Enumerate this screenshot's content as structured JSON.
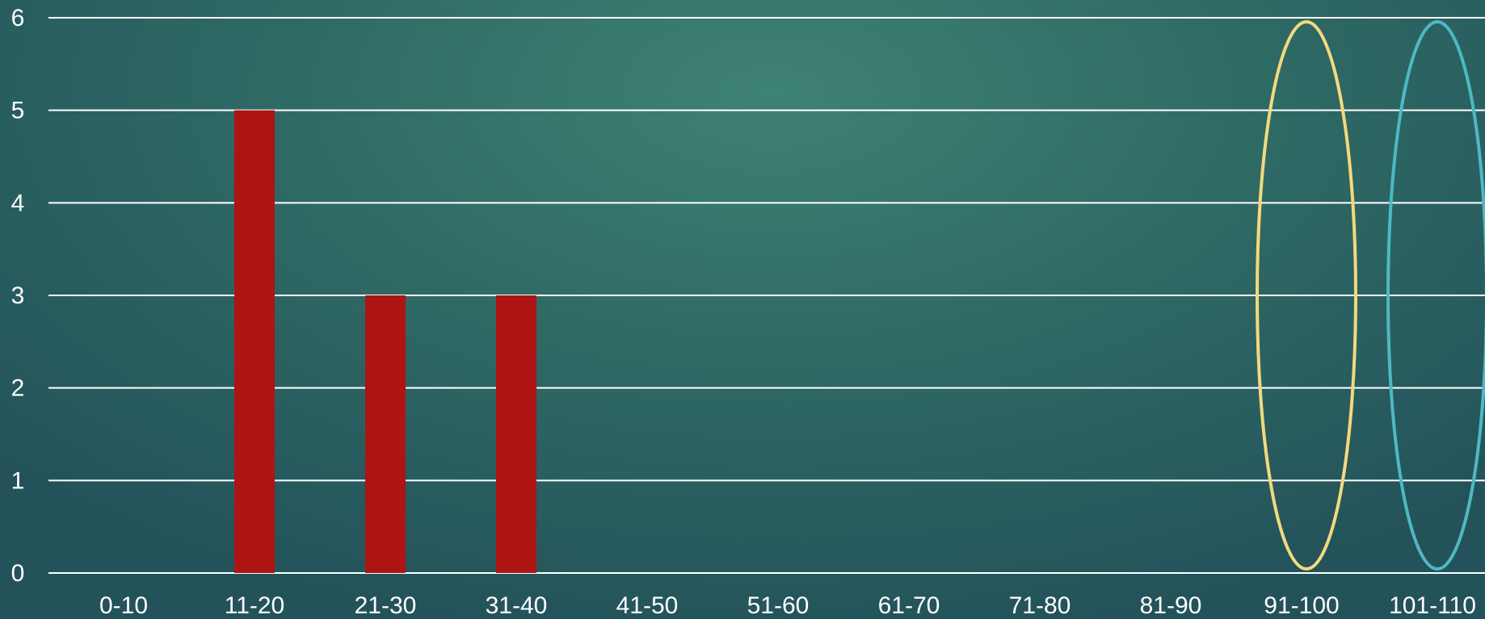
{
  "chart_data": {
    "type": "bar",
    "categories": [
      "0-10",
      "11-20",
      "21-30",
      "31-40",
      "41-50",
      "51-60",
      "61-70",
      "71-80",
      "81-90",
      "91-100",
      "101-110"
    ],
    "series": [
      {
        "values": [
          0,
          5,
          3,
          3,
          0,
          0,
          0,
          0,
          0,
          0,
          0
        ]
      }
    ],
    "ylim": [
      0,
      6
    ],
    "yticks": [
      0,
      1,
      2,
      3,
      4,
      5,
      6
    ],
    "grid": true,
    "title": "",
    "xlabel": "",
    "ylabel": "",
    "annotations": [
      {
        "type": "ellipse",
        "category": "91-100",
        "color": "#f2d97e"
      },
      {
        "type": "ellipse",
        "category": "101-110",
        "color": "#4fb8c4"
      }
    ]
  },
  "colors": {
    "bar": "#ad1414",
    "grid": "#ffffff",
    "text": "#ffffff"
  }
}
